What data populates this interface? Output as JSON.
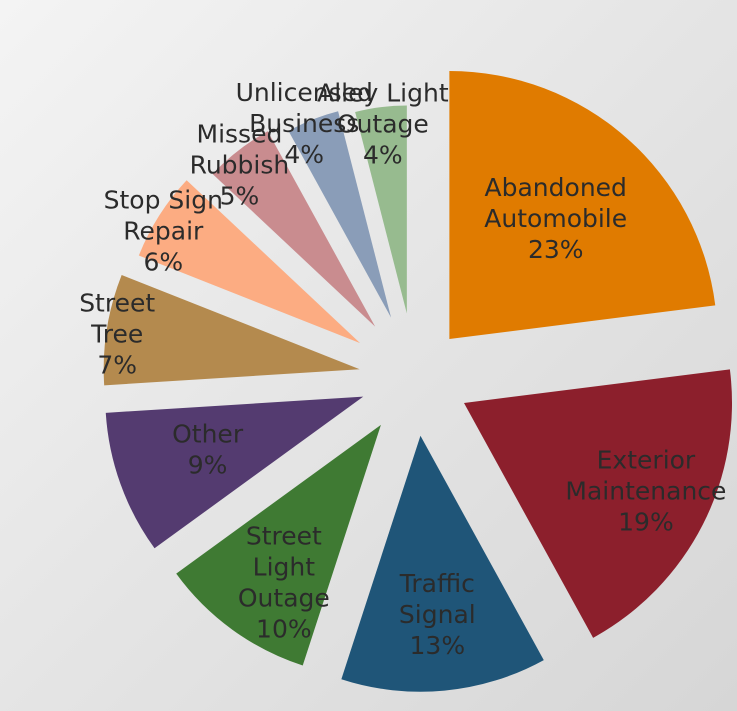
{
  "chart_data": {
    "type": "pie",
    "title": "",
    "slices": [
      {
        "label_lines": [
          "Abandoned",
          "Automobile",
          "23%"
        ],
        "value": 23,
        "color": "#e07b00"
      },
      {
        "label_lines": [
          "Exterior",
          "Maintenance",
          "19%"
        ],
        "value": 19,
        "color": "#8c1f2c"
      },
      {
        "label_lines": [
          "Traffic",
          "Signal",
          "13%"
        ],
        "value": 13,
        "color": "#1f5578"
      },
      {
        "label_lines": [
          "Street",
          "Light",
          "Outage",
          "10%"
        ],
        "value": 10,
        "color": "#3f7a33"
      },
      {
        "label_lines": [
          "Other",
          "9%"
        ],
        "value": 9,
        "color": "#543b70"
      },
      {
        "label_lines": [
          "Street",
          "Tree",
          "7%"
        ],
        "value": 7,
        "color": "#b48a4e"
      },
      {
        "label_lines": [
          "Stop Sign",
          "Repair",
          "6%"
        ],
        "value": 6,
        "color": "#fcac82"
      },
      {
        "label_lines": [
          "Missed",
          "Rubbish",
          "5%"
        ],
        "value": 5,
        "color": "#c98c8f"
      },
      {
        "label_lines": [
          "Unlicensed",
          "Business",
          "4%"
        ],
        "value": 4,
        "color": "#8a9db8"
      },
      {
        "label_lines": [
          "Alley Light",
          "Outage",
          "4%"
        ],
        "value": 4,
        "color": "#97bb8f"
      }
    ]
  }
}
